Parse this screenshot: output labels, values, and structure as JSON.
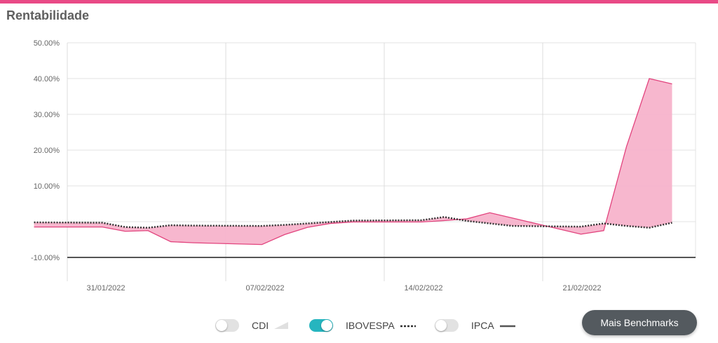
{
  "header": {
    "title": "Rentabilidade"
  },
  "colors": {
    "accent": "#e94a86",
    "fund_fill": "#f7b3cb",
    "fund_line": "#e2447e",
    "benchmark": "#333333",
    "toggle_on": "#26b5bf"
  },
  "chart_data": {
    "type": "area",
    "y_ticks": [
      "50.00%",
      "40.00%",
      "30.00%",
      "20.00%",
      "10.00%",
      "-10.00%"
    ],
    "y_tick_values": [
      50,
      40,
      30,
      20,
      10,
      -10
    ],
    "ylim": [
      -10,
      50
    ],
    "x_tick_labels": [
      "31/01/2022",
      "07/02/2022",
      "14/02/2022",
      "21/02/2022"
    ],
    "x": [
      "2022-01-28",
      "2022-01-31",
      "2022-02-01",
      "2022-02-02",
      "2022-02-03",
      "2022-02-04",
      "2022-02-07",
      "2022-02-08",
      "2022-02-09",
      "2022-02-10",
      "2022-02-11",
      "2022-02-14",
      "2022-02-15",
      "2022-02-16",
      "2022-02-17",
      "2022-02-18",
      "2022-02-21",
      "2022-02-22",
      "2022-02-23",
      "2022-02-24",
      "2022-02-25"
    ],
    "series": [
      {
        "values": [
          -1.5,
          -1.5,
          -2.7,
          -2.5,
          -5.6,
          -5.9,
          -6.4,
          -3.6,
          -1.6,
          -0.5,
          -0.1,
          -0.1,
          0.3,
          0.8,
          2.5,
          1.0,
          -3.5,
          -2.5,
          21.0,
          40.0,
          38.5
        ]
      },
      {
        "name": "IBOVESPA",
        "values": [
          -0.2,
          -0.3,
          -1.5,
          -1.7,
          -1.0,
          -1.1,
          -1.2,
          -0.9,
          -0.5,
          -0.1,
          0.3,
          0.4,
          1.3,
          0.2,
          -0.5,
          -1.2,
          -1.4,
          -0.5,
          -1.2,
          -1.7,
          -0.3
        ]
      }
    ]
  },
  "legend": {
    "items": [
      {
        "label": "CDI",
        "on": false
      },
      {
        "label": "IBOVESPA",
        "on": true
      },
      {
        "label": "IPCA",
        "on": false
      }
    ]
  },
  "actions": {
    "benchmarks_label": "Mais Benchmarks"
  }
}
